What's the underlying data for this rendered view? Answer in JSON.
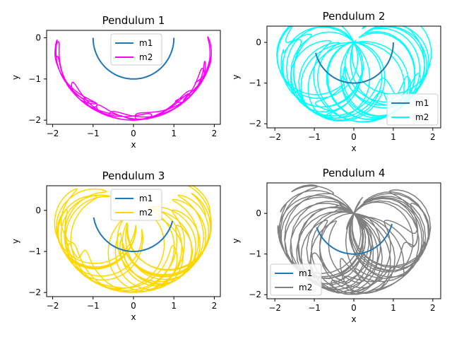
{
  "figure": {
    "background": "#ffffff"
  },
  "chart_data": [
    {
      "type": "line",
      "title": "Pendulum 1",
      "xlabel": "x",
      "ylabel": "y",
      "xlim": [
        -2.15,
        2.15
      ],
      "ylim": [
        -2.1,
        0.18
      ],
      "xticks": [
        -2,
        -1,
        0,
        1,
        2
      ],
      "yticks": [
        -2,
        -1,
        0
      ],
      "legend": {
        "placement": "upper-center",
        "entries": [
          "m1",
          "m2"
        ]
      },
      "series": [
        {
          "name": "m1",
          "color": "#1f77b4",
          "kind": "arc",
          "angle_range_deg": [
            -90,
            90
          ],
          "radius": 1
        },
        {
          "name": "m2",
          "color": "#ff00ff",
          "kind": "trajectory",
          "seed": 3,
          "loops": 14,
          "bottom_y": -2,
          "swing": 0.25
        }
      ]
    },
    {
      "type": "line",
      "title": "Pendulum 2",
      "xlabel": "x",
      "ylabel": "y",
      "xlim": [
        -2.2,
        2.2
      ],
      "ylim": [
        -2.1,
        0.4
      ],
      "xticks": [
        -2,
        -1,
        0,
        1,
        2
      ],
      "yticks": [
        -2,
        -1,
        0
      ],
      "legend": {
        "placement": "lower-right",
        "entries": [
          "m1",
          "m2"
        ]
      },
      "series": [
        {
          "name": "m1",
          "color": "#1f77b4",
          "kind": "arc",
          "angle_range_deg": [
            -75,
            90
          ],
          "radius": 1
        },
        {
          "name": "m2",
          "color": "#00ffff",
          "kind": "trajectory",
          "seed": 7,
          "loops": 18,
          "bottom_y": -2,
          "swing": 1.0
        }
      ]
    },
    {
      "type": "line",
      "title": "Pendulum 3",
      "xlabel": "x",
      "ylabel": "y",
      "xlim": [
        -2.15,
        2.15
      ],
      "ylim": [
        -2.1,
        0.6
      ],
      "xticks": [
        -2,
        -1,
        0,
        1,
        2
      ],
      "yticks": [
        -2,
        -1,
        0
      ],
      "legend": {
        "placement": "upper-center",
        "entries": [
          "m1",
          "m2"
        ]
      },
      "series": [
        {
          "name": "m1",
          "color": "#1f77b4",
          "kind": "arc",
          "angle_range_deg": [
            -80,
            75
          ],
          "radius": 1
        },
        {
          "name": "m2",
          "color": "#ffd700",
          "kind": "trajectory",
          "seed": 11,
          "loops": 16,
          "bottom_y": -2,
          "swing": 0.85
        }
      ]
    },
    {
      "type": "line",
      "title": "Pendulum 4",
      "xlabel": "x",
      "ylabel": "y",
      "xlim": [
        -2.2,
        2.2
      ],
      "ylim": [
        -2.1,
        0.75
      ],
      "xticks": [
        -2,
        -1,
        0,
        1,
        2
      ],
      "yticks": [
        -2,
        -1,
        0
      ],
      "legend": {
        "placement": "lower-left",
        "entries": [
          "m1",
          "m2"
        ]
      },
      "series": [
        {
          "name": "m1",
          "color": "#1f77b4",
          "kind": "arc",
          "angle_range_deg": [
            -70,
            75
          ],
          "radius": 1
        },
        {
          "name": "m2",
          "color": "#808080",
          "kind": "trajectory",
          "seed": 19,
          "loops": 20,
          "bottom_y": -2,
          "swing": 1.1
        }
      ]
    }
  ]
}
